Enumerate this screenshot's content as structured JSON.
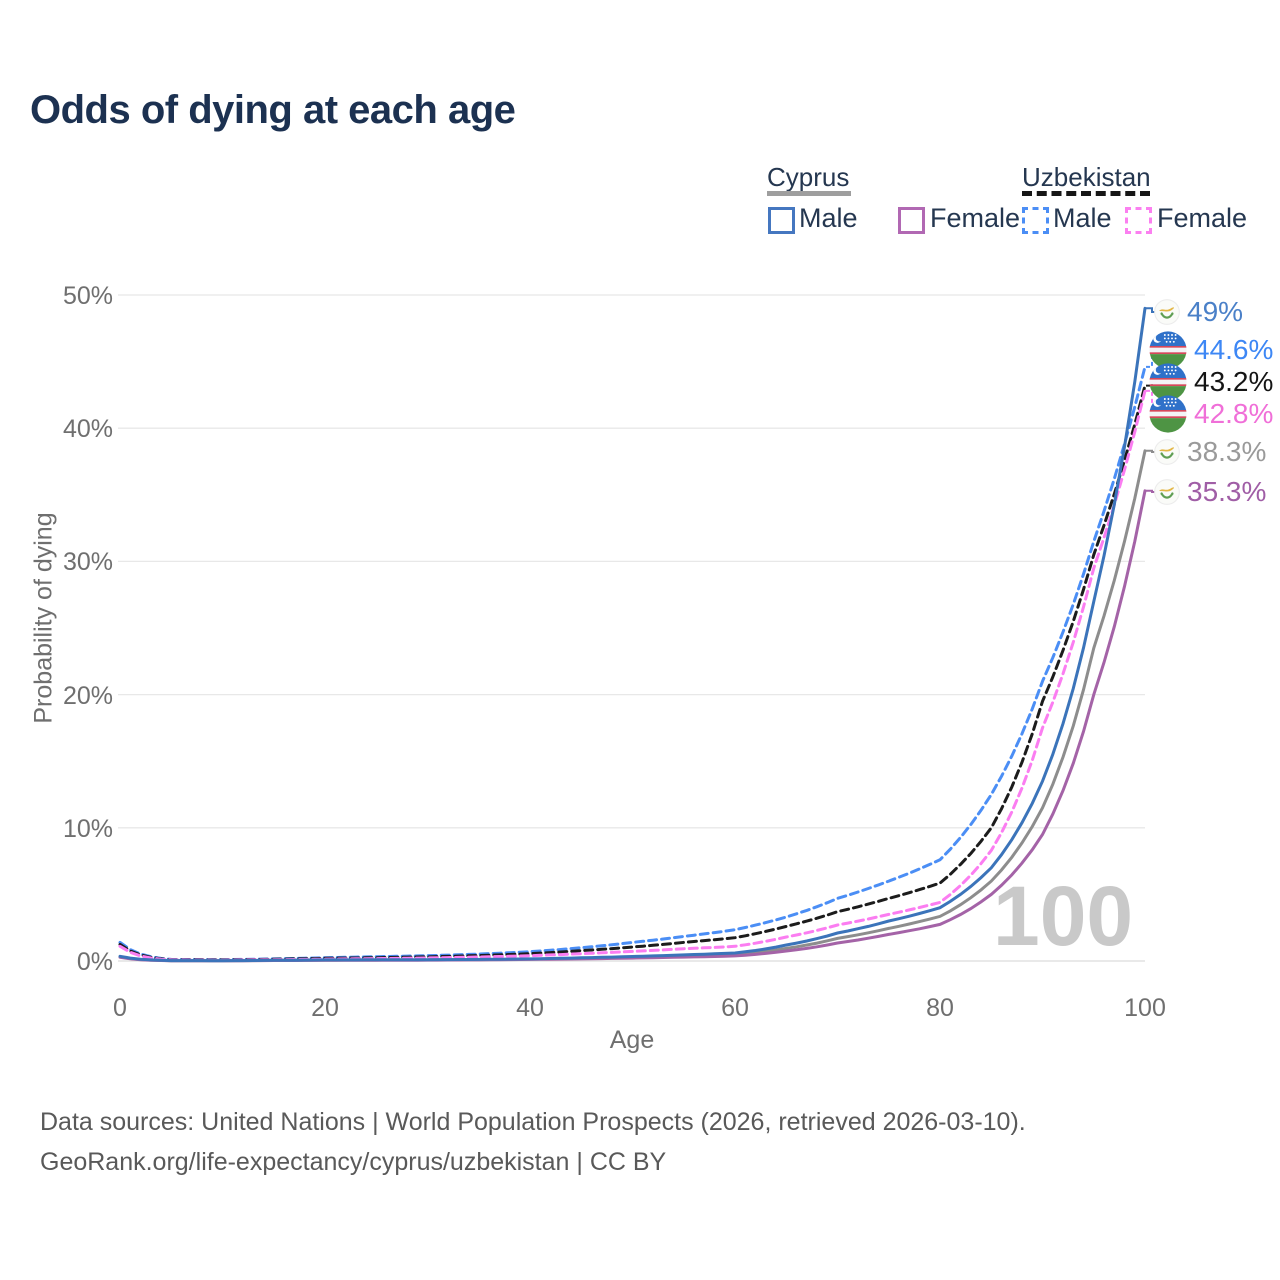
{
  "page": {
    "title": "Odds of dying at each age"
  },
  "legend": {
    "groups": [
      {
        "name": "Cyprus",
        "line_style": "solid",
        "header_color": "#9e9e9e",
        "items": [
          {
            "label": "Male",
            "color": "#4577c0"
          },
          {
            "label": "Female",
            "color": "#b168b3"
          }
        ]
      },
      {
        "name": "Uzbekistan",
        "line_style": "dashed",
        "header_color": "#161616",
        "items": [
          {
            "label": "Male",
            "color": "#4b8ef5"
          },
          {
            "label": "Female",
            "color": "#fb80f0"
          }
        ]
      }
    ]
  },
  "chart_data": {
    "type": "line",
    "title": "Odds of dying at each age",
    "xlabel": "Age",
    "ylabel": "Probability of dying",
    "xlim": [
      0,
      100
    ],
    "ylim": [
      0,
      50
    ],
    "x_ticks": [
      {
        "age": 0,
        "label": "0"
      },
      {
        "age": 20,
        "label": "20"
      },
      {
        "age": 40,
        "label": "40"
      },
      {
        "age": 60,
        "label": "60"
      },
      {
        "age": 80,
        "label": "80"
      },
      {
        "age": 100,
        "label": "100"
      }
    ],
    "y_ticks": [
      {
        "value": 0,
        "label": "0%"
      },
      {
        "value": 10,
        "label": "10%"
      },
      {
        "value": 20,
        "label": "20%"
      },
      {
        "value": 30,
        "label": "30%"
      },
      {
        "value": 40,
        "label": "40%"
      },
      {
        "value": 50,
        "label": "50%"
      }
    ],
    "grid": "horizontal",
    "legend_position": "top-right",
    "watermark": "100",
    "ages": [
      0,
      5,
      10,
      15,
      20,
      25,
      30,
      35,
      40,
      45,
      50,
      55,
      60,
      65,
      70,
      75,
      80,
      85,
      90,
      95,
      100
    ],
    "series": [
      {
        "name": "Uzbekistan Male",
        "country": "Uzbekistan",
        "sex": "Male",
        "line": "dashed",
        "color": "#4b8ef5",
        "label_color": "#3d87f5",
        "flag": "uzbekistan",
        "end_label": "44.6%",
        "end_value": 44.6,
        "values": [
          1.4,
          0.12,
          0.1,
          0.16,
          0.25,
          0.32,
          0.4,
          0.52,
          0.7,
          1.0,
          1.4,
          1.85,
          2.35,
          3.3,
          4.7,
          6.0,
          7.6,
          12.5,
          21.0,
          31.5,
          44.6
        ]
      },
      {
        "name": "Uzbekistan Both sexes",
        "country": "Uzbekistan",
        "sex": "Both sexes",
        "line": "dashed",
        "color": "#1c1c1c",
        "label_color": "#151515",
        "flag": "uzbekistan",
        "end_label": "43.2%",
        "end_value": 43.2,
        "values": [
          1.25,
          0.1,
          0.08,
          0.13,
          0.2,
          0.25,
          0.31,
          0.41,
          0.55,
          0.78,
          1.05,
          1.4,
          1.75,
          2.6,
          3.7,
          4.7,
          5.85,
          10.0,
          19.5,
          30.5,
          43.2
        ]
      },
      {
        "name": "Uzbekistan Female",
        "country": "Uzbekistan",
        "sex": "Female",
        "line": "dashed",
        "color": "#fb7df1",
        "label_color": "#f06fd8",
        "flag": "uzbekistan",
        "end_label": "42.8%",
        "end_value": 42.8,
        "values": [
          1.1,
          0.08,
          0.06,
          0.1,
          0.14,
          0.18,
          0.23,
          0.3,
          0.4,
          0.55,
          0.72,
          0.92,
          1.1,
          1.8,
          2.7,
          3.5,
          4.4,
          8.3,
          17.5,
          29.5,
          42.8
        ]
      },
      {
        "name": "Cyprus Both sexes",
        "country": "Cyprus",
        "sex": "Both sexes",
        "line": "solid",
        "color": "#8d8d8d",
        "label_color": "#9a9a9a",
        "flag": "cyprus",
        "end_label": "38.3%",
        "end_value": 38.3,
        "values": [
          0.31,
          0.025,
          0.02,
          0.04,
          0.06,
          0.07,
          0.08,
          0.1,
          0.14,
          0.2,
          0.28,
          0.37,
          0.48,
          0.95,
          1.7,
          2.45,
          3.35,
          6.0,
          11.5,
          23.5,
          38.3
        ]
      },
      {
        "name": "Cyprus Female",
        "country": "Cyprus",
        "sex": "Female",
        "line": "solid",
        "color": "#a463a7",
        "label_color": "#a05ea6",
        "flag": "cyprus",
        "end_label": "35.3%",
        "end_value": 35.3,
        "values": [
          0.28,
          0.02,
          0.02,
          0.035,
          0.05,
          0.055,
          0.065,
          0.085,
          0.12,
          0.16,
          0.22,
          0.29,
          0.38,
          0.75,
          1.35,
          2.0,
          2.75,
          5.0,
          9.5,
          20.0,
          35.3
        ]
      },
      {
        "name": "Cyprus Male",
        "country": "Cyprus",
        "sex": "Male",
        "line": "solid",
        "color": "#3b74ba",
        "label_color": "#4a80c8",
        "flag": "cyprus",
        "end_label": "49%",
        "end_value": 49,
        "values": [
          0.35,
          0.03,
          0.025,
          0.05,
          0.08,
          0.09,
          0.1,
          0.12,
          0.16,
          0.24,
          0.34,
          0.46,
          0.6,
          1.2,
          2.1,
          3.0,
          4.0,
          7.0,
          13.5,
          27.0,
          49.0
        ]
      }
    ]
  },
  "footer": {
    "line1": "Data sources: United Nations | World Population Prospects (2026, retrieved 2026-03-10).",
    "line2": "GeoRank.org/life-expectancy/cyprus/uzbekistan | CC BY"
  }
}
